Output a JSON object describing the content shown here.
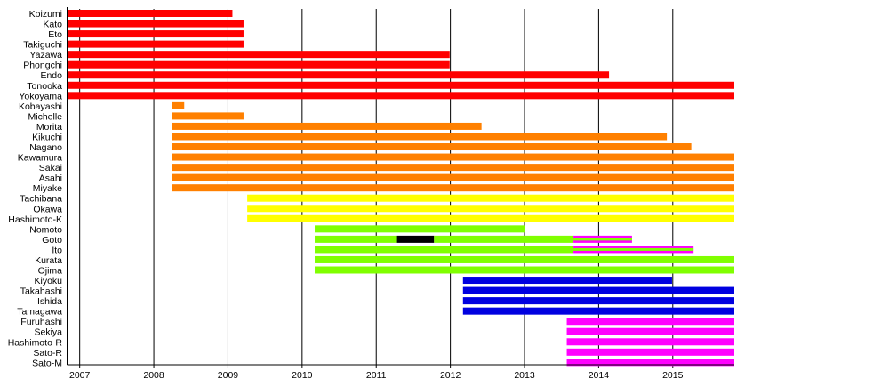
{
  "chart_data": {
    "type": "timeline",
    "title": "",
    "xlabel": "",
    "ylabel": "",
    "xlim": [
      2006.83,
      2015.83
    ],
    "x_ticks": [
      "2007",
      "2008",
      "2009",
      "2010",
      "2011",
      "2012",
      "2013",
      "2014",
      "2015"
    ],
    "grid": "vertical lines at each year",
    "colors": {
      "red": "#ff0000",
      "orange": "#ff8000",
      "yellow": "#ffff00",
      "green": "#80ff00",
      "blue": "#0000e0",
      "magenta": "#ff00ff",
      "black": "#000000"
    },
    "rows": [
      {
        "label": "Koizumi",
        "segments": [
          {
            "start": 2006.83,
            "end": 2009.06,
            "color": "red"
          }
        ]
      },
      {
        "label": "Kato",
        "segments": [
          {
            "start": 2006.83,
            "end": 2009.21,
            "color": "red"
          }
        ]
      },
      {
        "label": "Eto",
        "segments": [
          {
            "start": 2006.83,
            "end": 2009.21,
            "color": "red"
          }
        ]
      },
      {
        "label": "Takiguchi",
        "segments": [
          {
            "start": 2006.83,
            "end": 2009.21,
            "color": "red"
          }
        ]
      },
      {
        "label": "Yazawa",
        "segments": [
          {
            "start": 2006.83,
            "end": 2011.99,
            "color": "red"
          }
        ]
      },
      {
        "label": "Phongchi",
        "segments": [
          {
            "start": 2006.83,
            "end": 2011.99,
            "color": "red"
          }
        ]
      },
      {
        "label": "Endo",
        "segments": [
          {
            "start": 2006.83,
            "end": 2014.14,
            "color": "red"
          }
        ]
      },
      {
        "label": "Tonooka",
        "segments": [
          {
            "start": 2006.83,
            "end": 2015.83,
            "color": "red"
          }
        ]
      },
      {
        "label": "Yokoyama",
        "segments": [
          {
            "start": 2006.83,
            "end": 2015.83,
            "color": "red"
          }
        ]
      },
      {
        "label": "Kobayashi",
        "segments": [
          {
            "start": 2008.25,
            "end": 2008.41,
            "color": "orange"
          }
        ]
      },
      {
        "label": "Michelle",
        "segments": [
          {
            "start": 2008.25,
            "end": 2009.21,
            "color": "orange"
          }
        ]
      },
      {
        "label": "Morita",
        "segments": [
          {
            "start": 2008.25,
            "end": 2012.42,
            "color": "orange"
          }
        ]
      },
      {
        "label": "Kikuchi",
        "segments": [
          {
            "start": 2008.25,
            "end": 2014.92,
            "color": "orange"
          }
        ]
      },
      {
        "label": "Nagano",
        "segments": [
          {
            "start": 2008.25,
            "end": 2015.25,
            "color": "orange"
          }
        ]
      },
      {
        "label": "Kawamura",
        "segments": [
          {
            "start": 2008.25,
            "end": 2015.83,
            "color": "orange"
          }
        ]
      },
      {
        "label": "Sakai",
        "segments": [
          {
            "start": 2008.25,
            "end": 2015.83,
            "color": "orange"
          }
        ]
      },
      {
        "label": "Asahi",
        "segments": [
          {
            "start": 2008.25,
            "end": 2015.83,
            "color": "orange"
          }
        ]
      },
      {
        "label": "Miyake",
        "segments": [
          {
            "start": 2008.25,
            "end": 2015.83,
            "color": "orange"
          }
        ]
      },
      {
        "label": "Tachibana",
        "segments": [
          {
            "start": 2009.26,
            "end": 2015.83,
            "color": "yellow"
          }
        ]
      },
      {
        "label": "Okawa",
        "segments": [
          {
            "start": 2009.26,
            "end": 2015.83,
            "color": "yellow"
          }
        ]
      },
      {
        "label": "Hashimoto-K",
        "segments": [
          {
            "start": 2009.26,
            "end": 2015.83,
            "color": "yellow"
          }
        ]
      },
      {
        "label": "Nomoto",
        "segments": [
          {
            "start": 2010.17,
            "end": 2013.0,
            "color": "green"
          }
        ]
      },
      {
        "label": "Goto",
        "segments": [
          {
            "start": 2010.17,
            "end": 2011.28,
            "color": "green"
          },
          {
            "start": 2011.28,
            "end": 2011.78,
            "color": "black"
          },
          {
            "start": 2011.78,
            "end": 2013.66,
            "color": "green"
          },
          {
            "start": 2013.66,
            "end": 2014.45,
            "color": "green",
            "outline": "magenta"
          }
        ]
      },
      {
        "label": "Ito",
        "segments": [
          {
            "start": 2010.17,
            "end": 2013.66,
            "color": "green"
          },
          {
            "start": 2013.66,
            "end": 2015.28,
            "color": "green",
            "outline": "magenta"
          }
        ]
      },
      {
        "label": "Kurata",
        "segments": [
          {
            "start": 2010.17,
            "end": 2015.83,
            "color": "green"
          }
        ]
      },
      {
        "label": "Ojima",
        "segments": [
          {
            "start": 2010.17,
            "end": 2015.83,
            "color": "green"
          }
        ]
      },
      {
        "label": "Kiyoku",
        "segments": [
          {
            "start": 2012.17,
            "end": 2014.99,
            "color": "blue"
          }
        ]
      },
      {
        "label": "Takahashi",
        "segments": [
          {
            "start": 2012.17,
            "end": 2015.83,
            "color": "blue"
          }
        ]
      },
      {
        "label": "Ishida",
        "segments": [
          {
            "start": 2012.17,
            "end": 2015.83,
            "color": "blue"
          }
        ]
      },
      {
        "label": "Tamagawa",
        "segments": [
          {
            "start": 2012.17,
            "end": 2015.83,
            "color": "blue"
          }
        ]
      },
      {
        "label": "Furuhashi",
        "segments": [
          {
            "start": 2013.57,
            "end": 2015.83,
            "color": "magenta"
          }
        ]
      },
      {
        "label": "Sekiya",
        "segments": [
          {
            "start": 2013.57,
            "end": 2015.83,
            "color": "magenta"
          }
        ]
      },
      {
        "label": "Hashimoto-R",
        "segments": [
          {
            "start": 2013.57,
            "end": 2015.83,
            "color": "magenta"
          }
        ]
      },
      {
        "label": "Sato-R",
        "segments": [
          {
            "start": 2013.57,
            "end": 2015.83,
            "color": "magenta"
          }
        ]
      },
      {
        "label": "Sato-M",
        "segments": [
          {
            "start": 2013.57,
            "end": 2015.83,
            "color": "magenta"
          }
        ]
      }
    ]
  }
}
